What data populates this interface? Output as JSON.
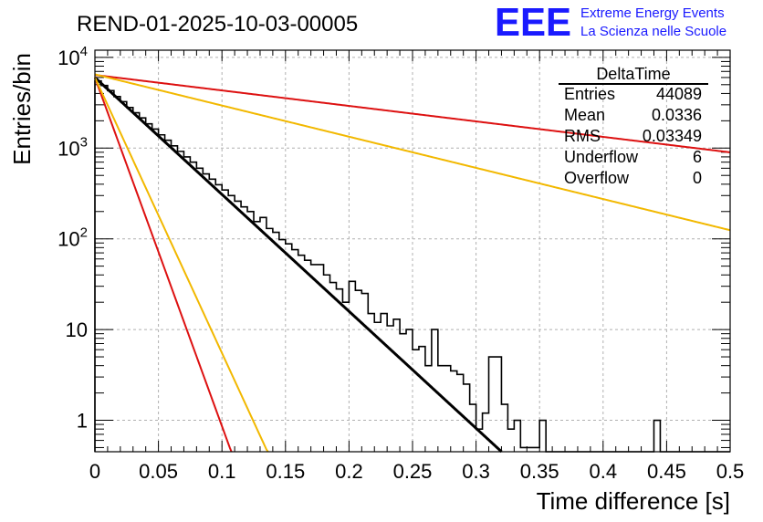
{
  "chart_data": {
    "type": "histogram",
    "title": "REND-01-2025-10-03-00005",
    "xlabel": "Time difference [s]",
    "ylabel": "Entries/bin",
    "xlim": [
      0,
      0.5
    ],
    "ylim": [
      0.45,
      12000
    ],
    "yscale": "log",
    "grid": true,
    "x_ticks": [
      {
        "v": 0,
        "label": "0"
      },
      {
        "v": 0.05,
        "label": "0.05"
      },
      {
        "v": 0.1,
        "label": "0.1"
      },
      {
        "v": 0.15,
        "label": "0.15"
      },
      {
        "v": 0.2,
        "label": "0.2"
      },
      {
        "v": 0.25,
        "label": "0.25"
      },
      {
        "v": 0.3,
        "label": "0.3"
      },
      {
        "v": 0.35,
        "label": "0.35"
      },
      {
        "v": 0.4,
        "label": "0.4"
      },
      {
        "v": 0.45,
        "label": "0.45"
      },
      {
        "v": 0.5,
        "label": "0.5"
      }
    ],
    "y_ticks": [
      {
        "v": 1,
        "base": "1",
        "exp": ""
      },
      {
        "v": 10,
        "base": "10",
        "exp": ""
      },
      {
        "v": 100,
        "base": "10",
        "exp": "2"
      },
      {
        "v": 1000,
        "base": "10",
        "exp": "3"
      },
      {
        "v": 10000,
        "base": "10",
        "exp": "4"
      }
    ],
    "histogram": {
      "bin_width": 0.005,
      "x_start": 0,
      "counts": [
        5500,
        4900,
        4300,
        3700,
        3250,
        2800,
        2450,
        2150,
        1850,
        1620,
        1400,
        1220,
        1060,
        920,
        800,
        700,
        600,
        520,
        455,
        395,
        345,
        300,
        260,
        225,
        200,
        155,
        172,
        130,
        118,
        98,
        88,
        76,
        66,
        58,
        52,
        52,
        40,
        33,
        28,
        20,
        34,
        27,
        25,
        15,
        12,
        15,
        11,
        13,
        9,
        10,
        6,
        6.5,
        4,
        10,
        4,
        4,
        3.5,
        3.2,
        2.5,
        1.5,
        0.8,
        1.2,
        5,
        5,
        1.5,
        0.8,
        1,
        0.5,
        0.5,
        0.5,
        1,
        0,
        0,
        0,
        0,
        0,
        0,
        0,
        0,
        0,
        0,
        0,
        0,
        0,
        0,
        0,
        0,
        0,
        1,
        0,
        0,
        0,
        0,
        0,
        0,
        0,
        0,
        0,
        0,
        0
      ]
    },
    "series": [
      {
        "name": "fit",
        "color": "#000000",
        "kind": "exponential",
        "n0": 6000,
        "tau": 0.0337,
        "x_end": 0.325
      },
      {
        "name": "red_steep",
        "color": "#dd1111",
        "kind": "exponential",
        "n0": 6000,
        "tau": 0.0113,
        "x_end": 0.5
      },
      {
        "name": "orange_steep",
        "color": "#f2b800",
        "kind": "exponential",
        "n0": 6000,
        "tau": 0.0143,
        "x_end": 0.5
      },
      {
        "name": "red_shallow",
        "color": "#dd1111",
        "kind": "exponential",
        "n0": 6400,
        "tau": 0.2546,
        "x_end": 0.5
      },
      {
        "name": "orange_shallow",
        "color": "#f2b800",
        "kind": "exponential",
        "n0": 6500,
        "tau": 0.1264,
        "x_end": 0.5
      }
    ],
    "stats": {
      "title": "DeltaTime",
      "rows": [
        {
          "label": "Entries",
          "value": "44089"
        },
        {
          "label": "Mean",
          "value": "0.0336"
        },
        {
          "label": "RMS",
          "value": "0.03349"
        },
        {
          "label": "Underflow",
          "value": "6"
        },
        {
          "label": "Overflow",
          "value": "0"
        }
      ]
    }
  },
  "logo": {
    "mark": "EEE",
    "line1": "Extreme Energy Events",
    "line2": "La Scienza nelle Scuole",
    "color": "#1a1aff"
  }
}
